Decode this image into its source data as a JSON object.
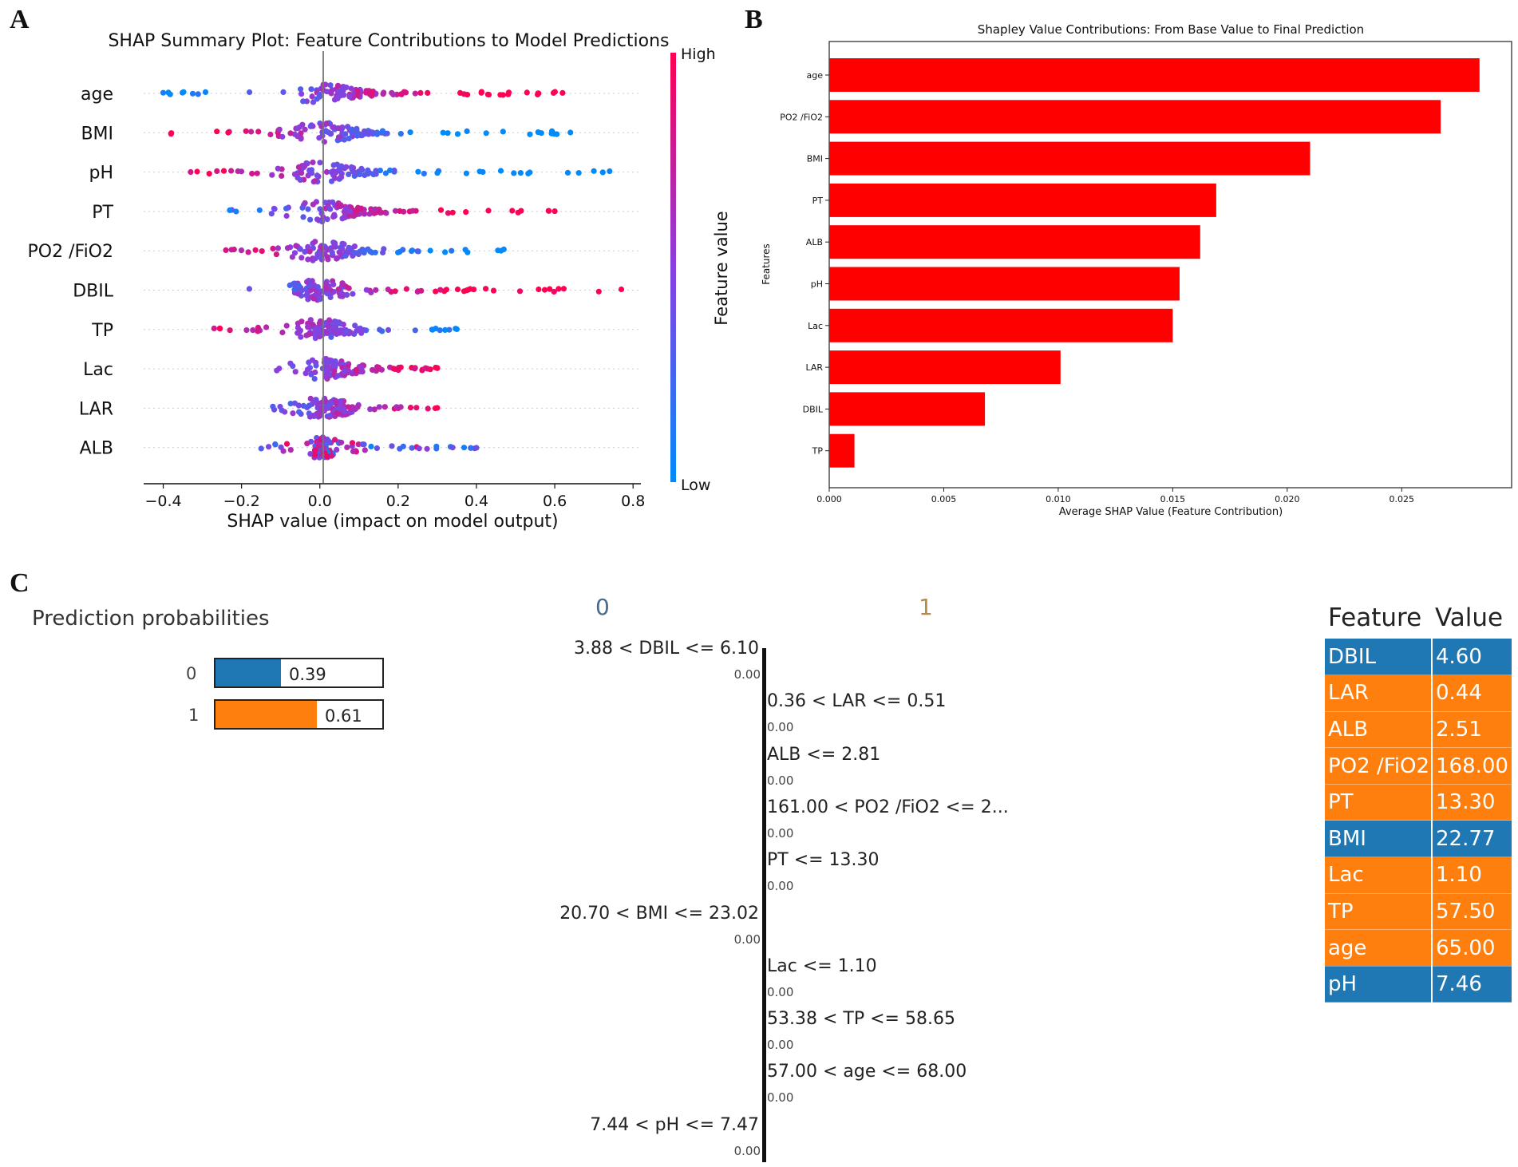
{
  "panels": {
    "a": "A",
    "b": "B",
    "c": "C"
  },
  "chart_data": [
    {
      "type": "scatter",
      "subtype": "shap-beeswarm",
      "title": "SHAP Summary Plot: Feature Contributions to Model Predictions",
      "xlabel": "SHAP value (impact on model output)",
      "ylabel": "",
      "xlim": [
        -0.45,
        0.82
      ],
      "xticks": [
        -0.4,
        -0.2,
        0.0,
        0.2,
        0.4,
        0.6,
        0.8
      ],
      "xtick_labels": [
        "−0.4",
        "−0.2",
        "0.0",
        "0.2",
        "0.4",
        "0.6",
        "0.8"
      ],
      "features": [
        "age",
        "BMI",
        "pH",
        "PT",
        "PO2 /FiO2",
        "DBIL",
        "TP",
        "Lac",
        "LAR",
        "ALB"
      ],
      "ranges": [
        {
          "feature": "age",
          "min": -0.4,
          "max": 0.62,
          "core_min": -0.12,
          "core_max": 0.26
        },
        {
          "feature": "BMI",
          "min": -0.38,
          "max": 0.64,
          "core_min": -0.15,
          "core_max": 0.25
        },
        {
          "feature": "pH",
          "min": -0.33,
          "max": 0.74,
          "core_min": -0.15,
          "core_max": 0.25
        },
        {
          "feature": "PT",
          "min": -0.23,
          "max": 0.6,
          "core_min": -0.1,
          "core_max": 0.25
        },
        {
          "feature": "PO2 /FiO2",
          "min": -0.24,
          "max": 0.47,
          "core_min": -0.12,
          "core_max": 0.2
        },
        {
          "feature": "DBIL",
          "min": -0.18,
          "max": 0.77,
          "core_min": -0.12,
          "core_max": 0.12
        },
        {
          "feature": "TP",
          "min": -0.27,
          "max": 0.35,
          "core_min": -0.08,
          "core_max": 0.15
        },
        {
          "feature": "Lac",
          "min": -0.11,
          "max": 0.3,
          "core_min": -0.05,
          "core_max": 0.15
        },
        {
          "feature": "LAR",
          "min": -0.12,
          "max": 0.3,
          "core_min": -0.05,
          "core_max": 0.12
        },
        {
          "feature": "ALB",
          "min": -0.15,
          "max": 0.4,
          "core_min": -0.04,
          "core_max": 0.06
        }
      ],
      "colorbar": {
        "label": "Feature value",
        "high": "High",
        "low": "Low",
        "high_color": "#ff0052",
        "low_color": "#008bfb"
      }
    },
    {
      "type": "bar",
      "orientation": "horizontal",
      "title": "Shapley Value Contributions: From Base Value to Final Prediction",
      "xlabel": "Average SHAP Value (Feature Contribution)",
      "ylabel": "Features",
      "categories": [
        "age",
        "PO2 /FiO2",
        "BMI",
        "PT",
        "ALB",
        "pH",
        "Lac",
        "LAR",
        "DBIL",
        "TP"
      ],
      "values": [
        0.0284,
        0.0267,
        0.021,
        0.0169,
        0.0162,
        0.0153,
        0.015,
        0.0101,
        0.0068,
        0.0011
      ],
      "xlim": [
        0,
        0.0298
      ],
      "xticks": [
        0,
        0.005,
        0.01,
        0.015,
        0.02,
        0.025
      ],
      "xtick_labels": [
        "0.000",
        "0.005",
        "0.010",
        "0.015",
        "0.020",
        "0.025"
      ],
      "color": "#ff0000"
    },
    {
      "type": "bar",
      "subtype": "lime-explanation",
      "title": "Prediction probabilities",
      "classes": [
        "0",
        "1"
      ],
      "probabilities": [
        0.39,
        0.61
      ],
      "probability_labels": [
        "0.39",
        "0.61"
      ],
      "class_colors": [
        "#1f77b4",
        "#ff7f0e"
      ],
      "class_headers": [
        "0",
        "1"
      ],
      "conditions": [
        {
          "label": "3.88 < DBIL <= 6.10",
          "weight": "0.00",
          "side": "0"
        },
        {
          "label": "0.36 < LAR <= 0.51",
          "weight": "0.00",
          "side": "1"
        },
        {
          "label": "ALB <= 2.81",
          "weight": "0.00",
          "side": "1"
        },
        {
          "label": "161.00 < PO2 /FiO2 <= 2...",
          "weight": "0.00",
          "side": "1"
        },
        {
          "label": "PT <= 13.30",
          "weight": "0.00",
          "side": "1"
        },
        {
          "label": "20.70 < BMI <= 23.02",
          "weight": "0.00",
          "side": "0"
        },
        {
          "label": "Lac <= 1.10",
          "weight": "0.00",
          "side": "1"
        },
        {
          "label": "53.38 < TP <= 58.65",
          "weight": "0.00",
          "side": "1"
        },
        {
          "label": "57.00 < age <= 68.00",
          "weight": "0.00",
          "side": "1"
        },
        {
          "label": "7.44 < pH <= 7.47",
          "weight": "0.00",
          "side": "0"
        }
      ]
    }
  ],
  "feature_table": {
    "title_feature": "Feature",
    "title_value": "Value",
    "rows": [
      {
        "name": "DBIL",
        "value": "4.60",
        "color": "#1f77b4"
      },
      {
        "name": "LAR",
        "value": "0.44",
        "color": "#ff7f0e"
      },
      {
        "name": "ALB",
        "value": "2.51",
        "color": "#ff7f0e"
      },
      {
        "name": "PO2 /FiO2",
        "value": "168.00",
        "color": "#ff7f0e"
      },
      {
        "name": "PT",
        "value": "13.30",
        "color": "#ff7f0e"
      },
      {
        "name": "BMI",
        "value": "22.77",
        "color": "#1f77b4"
      },
      {
        "name": "Lac",
        "value": "1.10",
        "color": "#ff7f0e"
      },
      {
        "name": "TP",
        "value": "57.50",
        "color": "#ff7f0e"
      },
      {
        "name": "age",
        "value": "65.00",
        "color": "#ff7f0e"
      },
      {
        "name": "pH",
        "value": "7.46",
        "color": "#1f77b4"
      }
    ]
  }
}
